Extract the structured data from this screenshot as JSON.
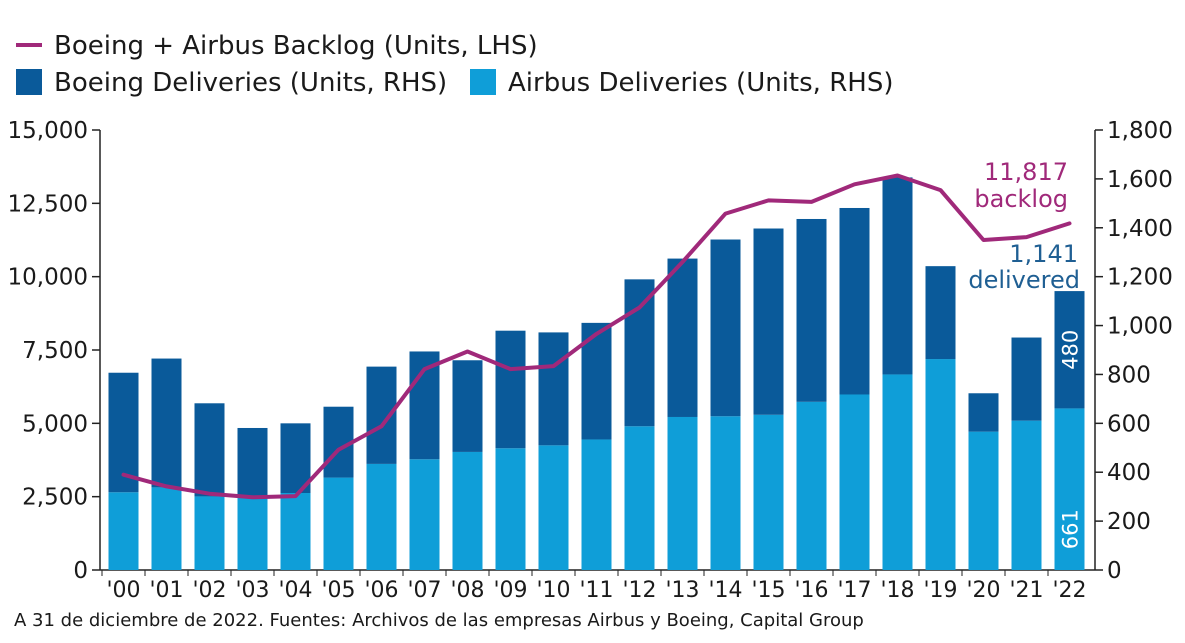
{
  "chart_data": {
    "type": "bar",
    "stacked": true,
    "categories": [
      "'00",
      "'01",
      "'02",
      "'03",
      "'04",
      "'05",
      "'06",
      "'07",
      "'08",
      "'09",
      "'10",
      "'11",
      "'12",
      "'13",
      "'14",
      "'15",
      "'16",
      "'17",
      "'18",
      "'19",
      "'20",
      "'21",
      "'22"
    ],
    "series": [
      {
        "name": "Airbus Deliveries (Units, RHS)",
        "kind": "bar",
        "axis": "right",
        "color": "#0f9ed8",
        "values": [
          318,
          338,
          301,
          300,
          315,
          378,
          434,
          453,
          483,
          498,
          510,
          534,
          588,
          626,
          629,
          635,
          688,
          718,
          800,
          863,
          566,
          611,
          661
        ]
      },
      {
        "name": "Boeing Deliveries (Units, RHS)",
        "kind": "bar",
        "axis": "right",
        "color": "#0a5a9a",
        "values": [
          489,
          527,
          381,
          281,
          285,
          290,
          398,
          441,
          375,
          481,
          462,
          477,
          601,
          648,
          723,
          762,
          748,
          763,
          806,
          380,
          157,
          340,
          480
        ]
      },
      {
        "name": "Boeing + Airbus Backlog (Units, LHS)",
        "kind": "line",
        "axis": "left",
        "color": "#a0297a",
        "values": [
          3250,
          2850,
          2600,
          2480,
          2520,
          4100,
          4900,
          6850,
          7450,
          6850,
          6950,
          8050,
          8950,
          10500,
          12150,
          12600,
          12550,
          13150,
          13450,
          12950,
          11250,
          11350,
          11817
        ]
      }
    ],
    "left_axis": {
      "min": 0,
      "max": 15000,
      "ticks": [
        "0",
        "2,500",
        "5,000",
        "7,500",
        "10,000",
        "12,500",
        "15,000"
      ]
    },
    "right_axis": {
      "min": 0,
      "max": 1800,
      "ticks": [
        "0",
        "200",
        "400",
        "600",
        "800",
        "1,000",
        "1,200",
        "1,400",
        "1,600",
        "1,800"
      ]
    },
    "legend": {
      "position": "top-left",
      "entries": [
        "Boeing + Airbus Backlog (Units, LHS)",
        "Boeing Deliveries (Units, RHS)",
        "Airbus Deliveries (Units, RHS)"
      ]
    },
    "annotations": {
      "backlog_value": "11,817",
      "backlog_label": "backlog",
      "delivered_value": "1,141",
      "delivered_label": "delivered",
      "last_boeing": "480",
      "last_airbus": "661",
      "backlog_color": "#a0297a",
      "delivered_color": "#1f5f93"
    },
    "grid": false,
    "title": "",
    "xlabel": "",
    "ylabel": ""
  },
  "source": "A 31 de diciembre de 2022. Fuentes: Archivos de las empresas Airbus y Boeing, Capital Group"
}
